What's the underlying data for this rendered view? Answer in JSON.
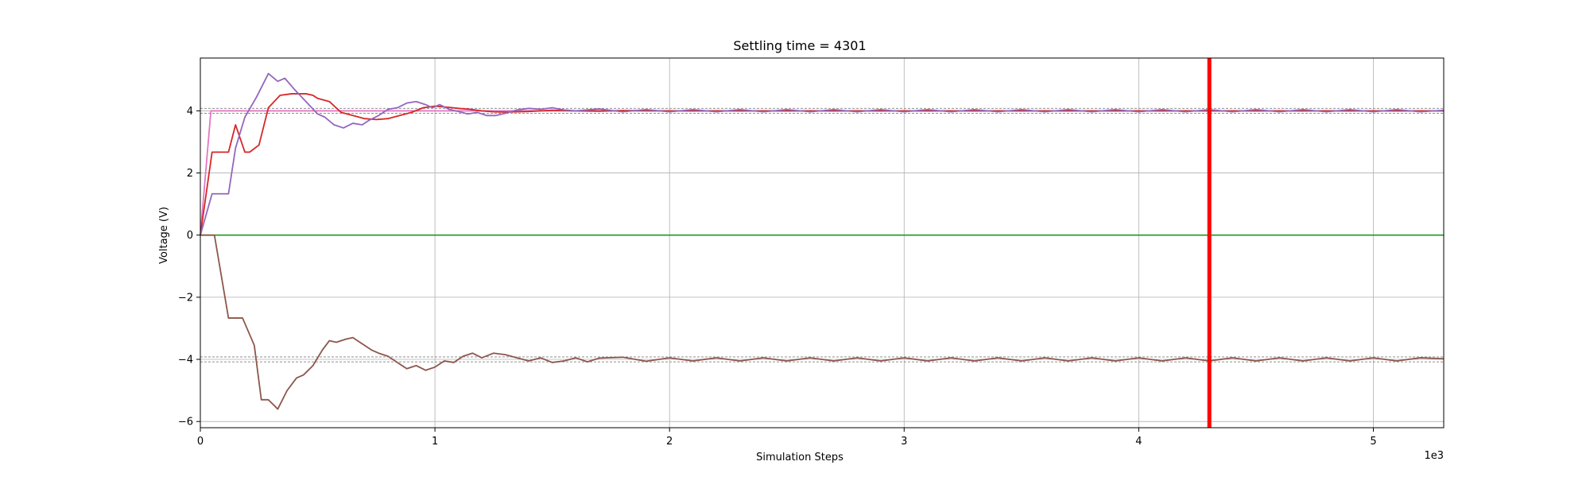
{
  "chart_data": {
    "type": "line",
    "title": "Settling time = 4301",
    "xlabel": "Simulation Steps",
    "ylabel": "Voltage (V)",
    "x_offset_label": "1e3",
    "xlim": [
      0,
      5300
    ],
    "ylim": [
      -6.2,
      5.7
    ],
    "x_ticks": [
      0,
      1000,
      2000,
      3000,
      4000,
      5000
    ],
    "x_tick_labels": [
      "0",
      "1",
      "2",
      "3",
      "4",
      "5"
    ],
    "y_ticks": [
      -6,
      -4,
      -2,
      0,
      2,
      4
    ],
    "y_tick_labels": [
      "−6",
      "−4",
      "−2",
      "0",
      "2",
      "4"
    ],
    "grid": true,
    "settling_time": 4301,
    "settling_line_color": "#ff0000",
    "tolerance_bands": [
      3.92,
      4.08,
      -3.92,
      -4.08
    ],
    "tolerance_color": "#808080",
    "series": [
      {
        "color": "#e377c2",
        "points": [
          [
            0,
            0
          ],
          [
            45,
            4
          ],
          [
            5300,
            4
          ]
        ]
      },
      {
        "color": "#2ca02c",
        "points": [
          [
            0,
            0
          ],
          [
            5300,
            0
          ]
        ]
      },
      {
        "color": "#d62728",
        "points": [
          [
            0,
            0
          ],
          [
            50,
            2.67
          ],
          [
            100,
            2.67
          ],
          [
            120,
            2.67
          ],
          [
            150,
            3.55
          ],
          [
            190,
            2.67
          ],
          [
            210,
            2.67
          ],
          [
            250,
            2.9
          ],
          [
            290,
            4.1
          ],
          [
            340,
            4.5
          ],
          [
            390,
            4.55
          ],
          [
            450,
            4.55
          ],
          [
            480,
            4.5
          ],
          [
            500,
            4.4
          ],
          [
            550,
            4.3
          ],
          [
            600,
            3.95
          ],
          [
            650,
            3.85
          ],
          [
            700,
            3.75
          ],
          [
            750,
            3.72
          ],
          [
            800,
            3.75
          ],
          [
            850,
            3.85
          ],
          [
            900,
            3.95
          ],
          [
            950,
            4.1
          ],
          [
            1000,
            4.15
          ],
          [
            1050,
            4.12
          ],
          [
            1100,
            4.08
          ],
          [
            1150,
            4.05
          ],
          [
            1200,
            4.0
          ],
          [
            1250,
            3.97
          ],
          [
            1300,
            3.96
          ],
          [
            1400,
            3.98
          ],
          [
            1500,
            4.02
          ],
          [
            1600,
            4.0
          ],
          [
            1700,
            3.99
          ],
          [
            1800,
            4.01
          ],
          [
            2000,
            4.0
          ],
          [
            3000,
            4.0
          ],
          [
            5300,
            4.0
          ]
        ]
      },
      {
        "color": "#9467bd",
        "points": [
          [
            0,
            0
          ],
          [
            50,
            1.33
          ],
          [
            100,
            1.33
          ],
          [
            120,
            1.33
          ],
          [
            150,
            2.8
          ],
          [
            190,
            3.8
          ],
          [
            240,
            4.45
          ],
          [
            290,
            5.2
          ],
          [
            330,
            4.95
          ],
          [
            360,
            5.05
          ],
          [
            400,
            4.7
          ],
          [
            450,
            4.3
          ],
          [
            500,
            3.9
          ],
          [
            530,
            3.8
          ],
          [
            570,
            3.55
          ],
          [
            610,
            3.45
          ],
          [
            650,
            3.6
          ],
          [
            690,
            3.55
          ],
          [
            720,
            3.7
          ],
          [
            760,
            3.85
          ],
          [
            800,
            4.05
          ],
          [
            840,
            4.1
          ],
          [
            880,
            4.25
          ],
          [
            920,
            4.3
          ],
          [
            960,
            4.2
          ],
          [
            990,
            4.1
          ],
          [
            1020,
            4.2
          ],
          [
            1060,
            4.05
          ],
          [
            1100,
            3.98
          ],
          [
            1140,
            3.9
          ],
          [
            1180,
            3.95
          ],
          [
            1220,
            3.85
          ],
          [
            1260,
            3.85
          ],
          [
            1300,
            3.92
          ],
          [
            1350,
            4.03
          ],
          [
            1400,
            4.08
          ],
          [
            1450,
            4.05
          ],
          [
            1500,
            4.1
          ],
          [
            1550,
            4.03
          ],
          [
            1600,
            4.0
          ],
          [
            1700,
            4.06
          ],
          [
            1800,
            3.97
          ],
          [
            1900,
            4.04
          ],
          [
            2000,
            3.97
          ],
          [
            2100,
            4.04
          ],
          [
            2200,
            3.97
          ],
          [
            2300,
            4.04
          ],
          [
            2400,
            3.97
          ],
          [
            2500,
            4.04
          ],
          [
            2600,
            3.97
          ],
          [
            2700,
            4.04
          ],
          [
            2800,
            3.97
          ],
          [
            2900,
            4.04
          ],
          [
            3000,
            3.97
          ],
          [
            3100,
            4.04
          ],
          [
            3200,
            3.97
          ],
          [
            3300,
            4.04
          ],
          [
            3400,
            3.97
          ],
          [
            3500,
            4.04
          ],
          [
            3600,
            3.97
          ],
          [
            3700,
            4.04
          ],
          [
            3800,
            3.97
          ],
          [
            3900,
            4.04
          ],
          [
            4000,
            3.97
          ],
          [
            4100,
            4.04
          ],
          [
            4200,
            3.97
          ],
          [
            4300,
            4.04
          ],
          [
            4400,
            3.97
          ],
          [
            4500,
            4.04
          ],
          [
            4600,
            3.97
          ],
          [
            4700,
            4.04
          ],
          [
            4800,
            3.97
          ],
          [
            4900,
            4.04
          ],
          [
            5000,
            3.97
          ],
          [
            5100,
            4.04
          ],
          [
            5200,
            3.97
          ],
          [
            5300,
            4.02
          ]
        ]
      },
      {
        "color": "#8c564b",
        "points": [
          [
            0,
            0
          ],
          [
            60,
            0
          ],
          [
            120,
            -2.67
          ],
          [
            180,
            -2.67
          ],
          [
            230,
            -3.55
          ],
          [
            260,
            -5.3
          ],
          [
            290,
            -5.3
          ],
          [
            330,
            -5.6
          ],
          [
            370,
            -5.0
          ],
          [
            410,
            -4.6
          ],
          [
            440,
            -4.5
          ],
          [
            480,
            -4.2
          ],
          [
            520,
            -3.7
          ],
          [
            550,
            -3.4
          ],
          [
            580,
            -3.45
          ],
          [
            620,
            -3.35
          ],
          [
            650,
            -3.3
          ],
          [
            690,
            -3.5
          ],
          [
            730,
            -3.7
          ],
          [
            760,
            -3.8
          ],
          [
            800,
            -3.9
          ],
          [
            840,
            -4.1
          ],
          [
            880,
            -4.3
          ],
          [
            920,
            -4.2
          ],
          [
            960,
            -4.35
          ],
          [
            1000,
            -4.25
          ],
          [
            1040,
            -4.05
          ],
          [
            1080,
            -4.1
          ],
          [
            1120,
            -3.9
          ],
          [
            1160,
            -3.8
          ],
          [
            1200,
            -3.95
          ],
          [
            1250,
            -3.8
          ],
          [
            1300,
            -3.85
          ],
          [
            1350,
            -3.95
          ],
          [
            1400,
            -4.05
          ],
          [
            1450,
            -3.95
          ],
          [
            1500,
            -4.1
          ],
          [
            1550,
            -4.05
          ],
          [
            1600,
            -3.95
          ],
          [
            1650,
            -4.08
          ],
          [
            1700,
            -3.96
          ],
          [
            1800,
            -3.93
          ],
          [
            1900,
            -4.06
          ],
          [
            2000,
            -3.95
          ],
          [
            2100,
            -4.05
          ],
          [
            2200,
            -3.95
          ],
          [
            2300,
            -4.05
          ],
          [
            2400,
            -3.95
          ],
          [
            2500,
            -4.05
          ],
          [
            2600,
            -3.95
          ],
          [
            2700,
            -4.05
          ],
          [
            2800,
            -3.95
          ],
          [
            2900,
            -4.05
          ],
          [
            3000,
            -3.95
          ],
          [
            3100,
            -4.05
          ],
          [
            3200,
            -3.95
          ],
          [
            3300,
            -4.05
          ],
          [
            3400,
            -3.95
          ],
          [
            3500,
            -4.05
          ],
          [
            3600,
            -3.95
          ],
          [
            3700,
            -4.05
          ],
          [
            3800,
            -3.95
          ],
          [
            3900,
            -4.05
          ],
          [
            4000,
            -3.95
          ],
          [
            4100,
            -4.05
          ],
          [
            4200,
            -3.95
          ],
          [
            4300,
            -4.05
          ],
          [
            4400,
            -3.95
          ],
          [
            4500,
            -4.05
          ],
          [
            4600,
            -3.95
          ],
          [
            4700,
            -4.05
          ],
          [
            4800,
            -3.95
          ],
          [
            4900,
            -4.05
          ],
          [
            5000,
            -3.95
          ],
          [
            5100,
            -4.05
          ],
          [
            5200,
            -3.95
          ],
          [
            5300,
            -3.98
          ]
        ]
      }
    ]
  }
}
